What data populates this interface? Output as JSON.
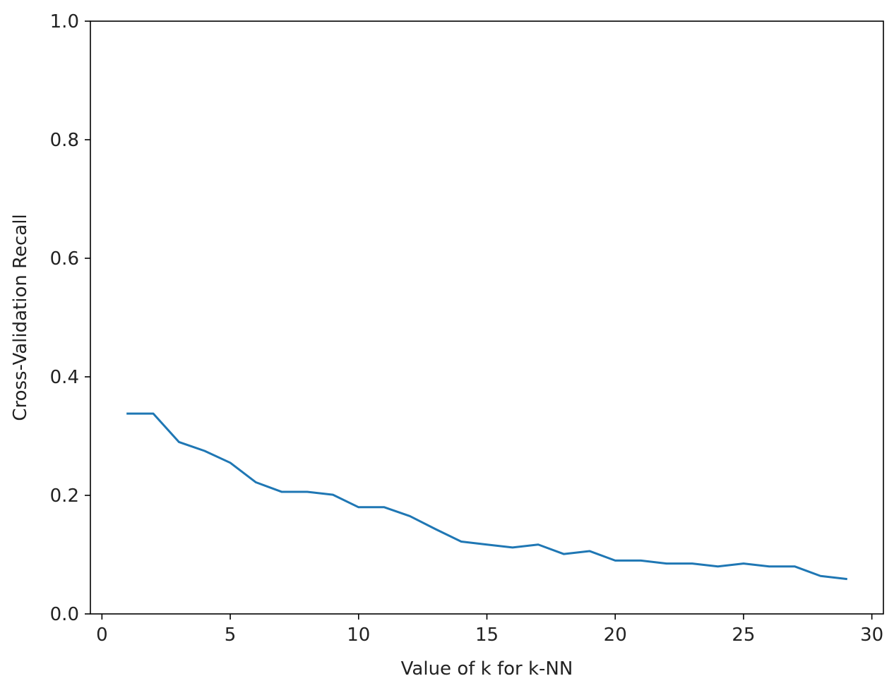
{
  "chart_data": {
    "type": "line",
    "title": "",
    "xlabel": "Value of k for k-NN",
    "ylabel": "Cross-Validation Recall",
    "xlim": [
      -0.45,
      30.45
    ],
    "ylim": [
      0.0,
      1.0
    ],
    "xticks": [
      0,
      5,
      10,
      15,
      20,
      25,
      30
    ],
    "xtick_labels": [
      "0",
      "5",
      "10",
      "15",
      "20",
      "25",
      "30"
    ],
    "yticks": [
      0.0,
      0.2,
      0.4,
      0.6,
      0.8,
      1.0
    ],
    "ytick_labels": [
      "0.0",
      "0.2",
      "0.4",
      "0.6",
      "0.8",
      "1.0"
    ],
    "grid": false,
    "legend": "none",
    "series": [
      {
        "color": "#1f77b4",
        "x": [
          1,
          2,
          3,
          4,
          5,
          6,
          7,
          8,
          9,
          10,
          11,
          12,
          13,
          14,
          15,
          16,
          17,
          18,
          19,
          20,
          21,
          22,
          23,
          24,
          25,
          26,
          27,
          28,
          29
        ],
        "y": [
          0.338,
          0.338,
          0.29,
          0.275,
          0.255,
          0.222,
          0.206,
          0.206,
          0.201,
          0.18,
          0.18,
          0.165,
          0.143,
          0.122,
          0.117,
          0.112,
          0.117,
          0.101,
          0.106,
          0.09,
          0.09,
          0.085,
          0.085,
          0.08,
          0.085,
          0.08,
          0.08,
          0.064,
          0.059
        ]
      }
    ]
  }
}
